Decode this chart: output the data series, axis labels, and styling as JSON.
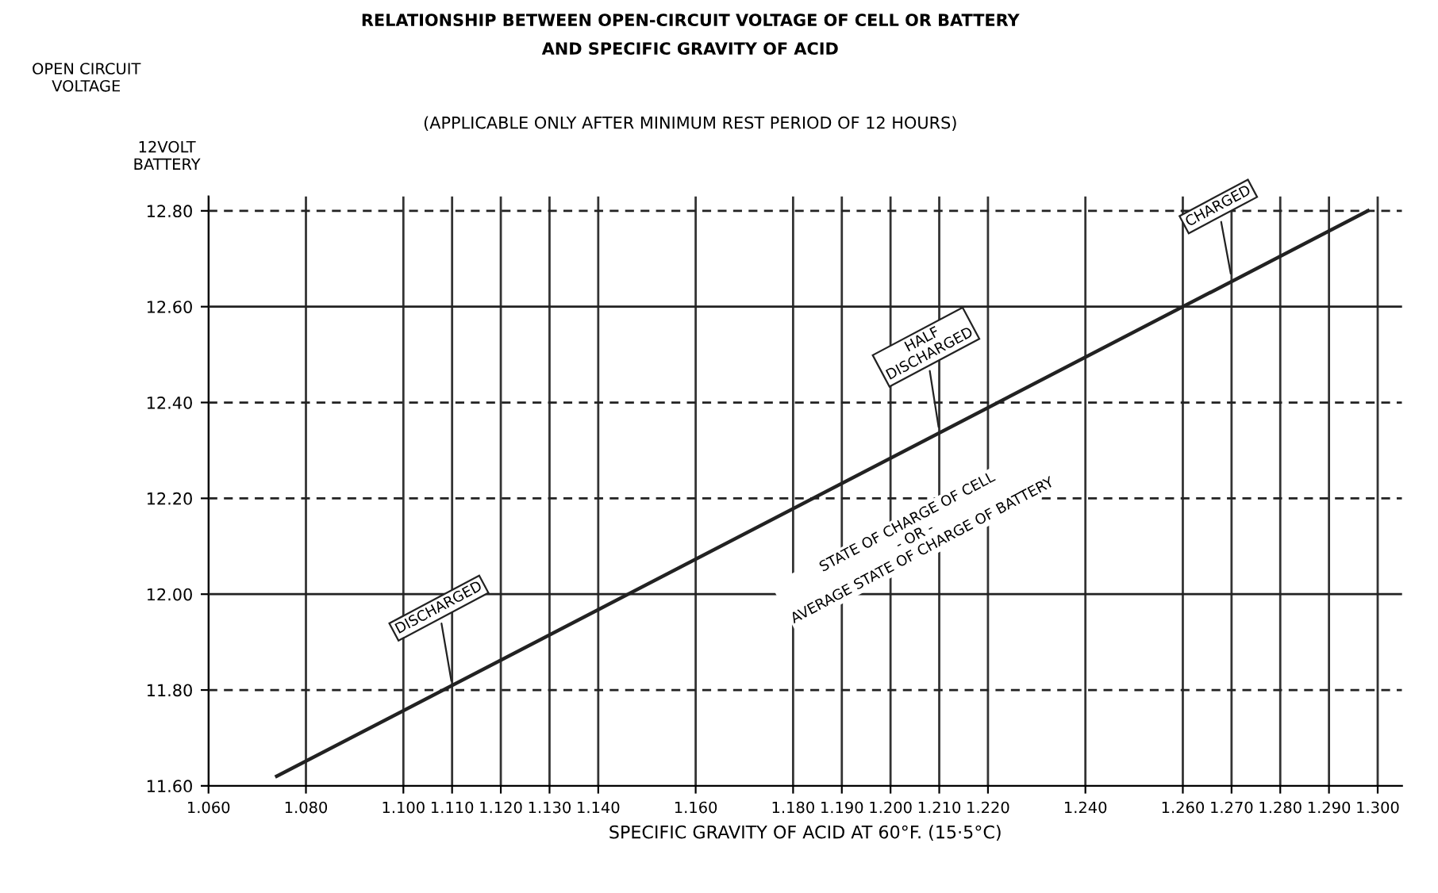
{
  "chart_data": {
    "type": "line",
    "title": "RELATIONSHIP BETWEEN OPEN-CIRCUIT VOLTAGE OF CELL OR BATTERY\nAND SPECIFIC GRAVITY OF ACID",
    "subtitle": "(APPLICABLE ONLY AFTER MINIMUM REST PERIOD OF 12 HOURS)",
    "xlabel": "SPECIFIC GRAVITY OF ACID AT 60°F. (15·5°C)",
    "ylabel": "12VOLT\nBATTERY",
    "x": [
      1.074,
      1.298
    ],
    "series": [
      {
        "color": "#222222",
        "values": [
          11.62,
          12.8
        ]
      }
    ],
    "xlim": [
      1.06,
      1.305
    ],
    "ylim": [
      11.6,
      12.83
    ],
    "xticks": [
      {
        "value": 1.06,
        "label": "1.060"
      },
      {
        "value": 1.08,
        "label": "1.080"
      },
      {
        "value": 1.1,
        "label": "1.100"
      },
      {
        "value": 1.11,
        "label": "1.110"
      },
      {
        "value": 1.12,
        "label": "1.120"
      },
      {
        "value": 1.13,
        "label": "1.130"
      },
      {
        "value": 1.14,
        "label": "1.140"
      },
      {
        "value": 1.16,
        "label": "1.160"
      },
      {
        "value": 1.18,
        "label": "1.180"
      },
      {
        "value": 1.19,
        "label": "1.190"
      },
      {
        "value": 1.2,
        "label": "1.200"
      },
      {
        "value": 1.21,
        "label": "1.210"
      },
      {
        "value": 1.22,
        "label": "1.220"
      },
      {
        "value": 1.24,
        "label": "1.240"
      },
      {
        "value": 1.26,
        "label": "1.260"
      },
      {
        "value": 1.27,
        "label": "1.270"
      },
      {
        "value": 1.28,
        "label": "1.280"
      },
      {
        "value": 1.29,
        "label": "1.290"
      },
      {
        "value": 1.3,
        "label": "1.300"
      }
    ],
    "yticks": [
      {
        "value": 11.6,
        "label": "11.60"
      },
      {
        "value": 11.8,
        "label": "11.80"
      },
      {
        "value": 12.0,
        "label": "12.00"
      },
      {
        "value": 12.2,
        "label": "12.20"
      },
      {
        "value": 12.4,
        "label": "12.40"
      },
      {
        "value": 12.6,
        "label": "12.60"
      },
      {
        "value": 12.8,
        "label": "12.80"
      }
    ],
    "ref_lines": [
      {
        "axis": "y",
        "value": 12.6,
        "line_style": "solid"
      },
      {
        "axis": "y",
        "value": 12.0,
        "line_style": "solid"
      },
      {
        "axis": "y",
        "value": 12.8,
        "line_style": "dashed"
      },
      {
        "axis": "y",
        "value": 12.4,
        "line_style": "dashed"
      },
      {
        "axis": "y",
        "value": 12.2,
        "line_style": "dashed"
      },
      {
        "axis": "y",
        "value": 11.8,
        "line_style": "dashed"
      }
    ],
    "annotations": [
      {
        "text": "DISCHARGED",
        "x": 1.11,
        "y": 11.81
      },
      {
        "text": "HALF\nDISCHARGED",
        "x": 1.21,
        "y": 12.34
      },
      {
        "text": "CHARGED",
        "x": 1.27,
        "y": 12.66
      },
      "STATE OF CHARGE OF CELL\n- OR -\nAVERAGE STATE OF CHARGE OF BATTERY",
      "OPEN CIRCUIT\nVOLTAGE"
    ],
    "grid": "x",
    "marker": "none",
    "line_style": "solid"
  }
}
